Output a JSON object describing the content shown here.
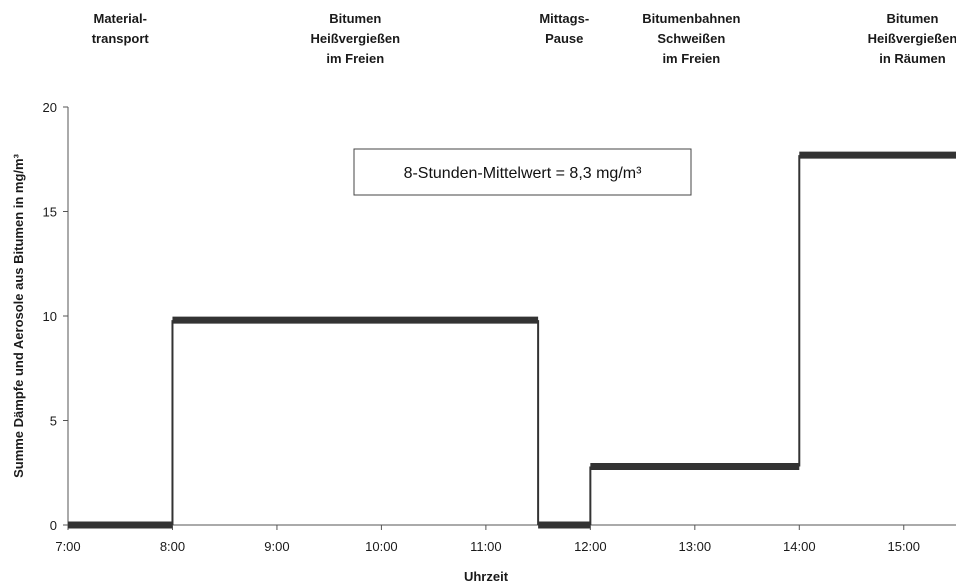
{
  "chart_data": {
    "type": "line",
    "title": "",
    "xlabel": "Uhrzeit",
    "ylabel": "Summe Dämpfe und Aerosole aus Bitumen in mg/m³",
    "xlim": [
      "7:00",
      "15:30"
    ],
    "ylim": [
      0,
      20
    ],
    "x_ticks": [
      "7:00",
      "8:00",
      "9:00",
      "10:00",
      "11:00",
      "12:00",
      "13:00",
      "14:00",
      "15:00"
    ],
    "y_ticks": [
      "0",
      "5",
      "10",
      "15",
      "20"
    ],
    "grid": false,
    "legend": null,
    "step_series": {
      "color": "#333333",
      "segments": [
        {
          "start": "7:00",
          "end": "8:00",
          "value": 0
        },
        {
          "start": "8:00",
          "end": "11:30",
          "value": 9.8
        },
        {
          "start": "11:30",
          "end": "12:00",
          "value": 0
        },
        {
          "start": "12:00",
          "end": "14:00",
          "value": 2.8
        },
        {
          "start": "14:00",
          "end": "15:30",
          "value": 17.7
        }
      ]
    },
    "phases": [
      {
        "lines": [
          "Material-",
          "transport"
        ],
        "time": "7:30"
      },
      {
        "lines": [
          "Bitumen",
          "Heißvergießen",
          "im Freien"
        ],
        "time": "9:45"
      },
      {
        "lines": [
          "Mittags-",
          "Pause"
        ],
        "time": "11:45"
      },
      {
        "lines": [
          "Bitumenbahnen",
          "Schweißen",
          "im Freien"
        ],
        "time": "12:58"
      },
      {
        "lines": [
          "Bitumen",
          "Heißvergießen",
          "in Räumen"
        ],
        "time": "15:05"
      }
    ],
    "annotation": "8-Stunden-Mittelwert = 8,3 mg/m³"
  }
}
